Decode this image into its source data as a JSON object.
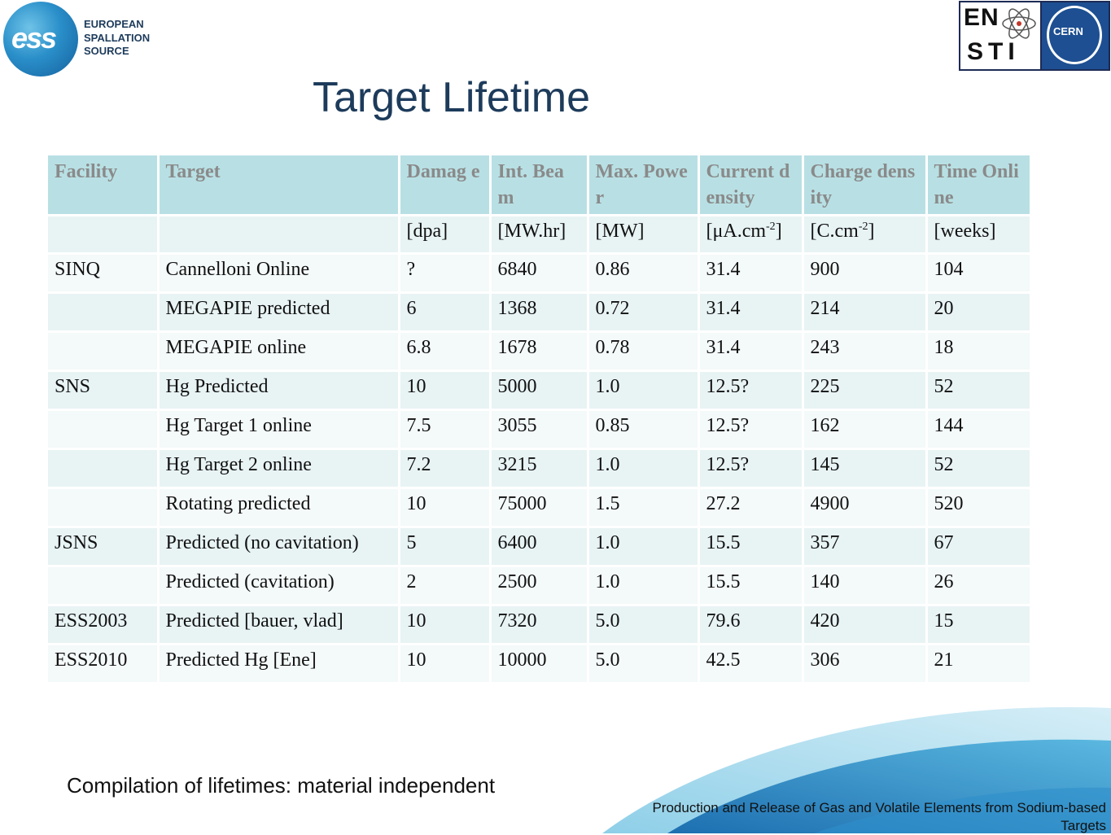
{
  "logos": {
    "ess_mark": "ess",
    "ess_words": [
      "EUROPEAN",
      "SPALLATION",
      "SOURCE"
    ],
    "en_sti_top": "EN",
    "en_sti_bottom": "STI",
    "cern": "CERN"
  },
  "title": "Target Lifetime",
  "table": {
    "headers": [
      "Facility",
      "Target",
      "Damag e",
      "Int. Beam",
      "Max. Power",
      "Current density",
      "Charge density",
      "Time Online"
    ],
    "units": {
      "damage": "[dpa]",
      "int_beam": "[MW.hr]",
      "max_power": "[MW]",
      "current_prefix": "[μA.cm",
      "current_exp": "-2",
      "current_suffix": "]",
      "charge_prefix": "[C.cm",
      "charge_exp": "-2",
      "charge_suffix": "]",
      "time": "[weeks]"
    },
    "rows": [
      [
        "SINQ",
        "Cannelloni Online",
        "?",
        "6840",
        "0.86",
        "31.4",
        "900",
        "104"
      ],
      [
        "",
        "MEGAPIE predicted",
        "6",
        "1368",
        "0.72",
        "31.4",
        "214",
        "20"
      ],
      [
        "",
        "MEGAPIE online",
        "6.8",
        "1678",
        "0.78",
        "31.4",
        "243",
        "18"
      ],
      [
        "SNS",
        "Hg Predicted",
        "10",
        "5000",
        "1.0",
        "12.5?",
        "225",
        "52"
      ],
      [
        "",
        "Hg Target 1 online",
        "7.5",
        "3055",
        "0.85",
        "12.5?",
        "162",
        "144"
      ],
      [
        "",
        "Hg Target 2 online",
        "7.2",
        "3215",
        "1.0",
        "12.5?",
        "145",
        "52"
      ],
      [
        "",
        "Rotating predicted",
        "10",
        "75000",
        "1.5",
        "27.2",
        "4900",
        "520"
      ],
      [
        "JSNS",
        "Predicted (no cavitation)",
        "5",
        "6400",
        "1.0",
        "15.5",
        "357",
        "67"
      ],
      [
        "",
        "Predicted (cavitation)",
        "2",
        "2500",
        "1.0",
        "15.5",
        "140",
        "26"
      ],
      [
        "ESS2003",
        "Predicted [bauer, vlad]",
        "10",
        "7320",
        "5.0",
        "79.6",
        "420",
        "15"
      ],
      [
        "ESS2010",
        "Predicted Hg [Ene]",
        "10",
        "10000",
        "5.0",
        "42.5",
        "306",
        "21"
      ]
    ]
  },
  "caption": "Compilation of lifetimes: material independent",
  "footer": "Production and Release of Gas and Volatile Elements from Sodium-based Targets",
  "colors": {
    "title": "#1d3b5b",
    "header_bg": "#b8e0e4",
    "row_odd": "#e8f3f4",
    "row_even": "#f4f9f9",
    "swoosh_dark": "#1d6fb0",
    "swoosh_light": "#8ecfe8"
  }
}
